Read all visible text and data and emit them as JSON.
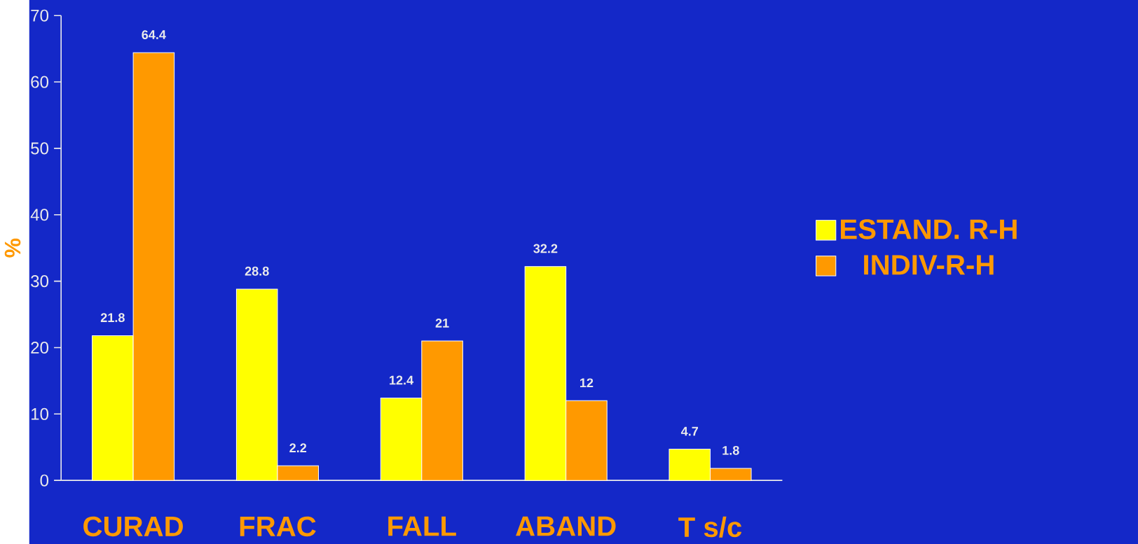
{
  "chart_data": {
    "type": "bar",
    "ylabel": "%",
    "categories": [
      "CURAD",
      "FRAC",
      "FALL",
      "ABAND",
      "T s/c"
    ],
    "series": [
      {
        "name": "ESTAND. R-H",
        "color": "#ffff00",
        "values": [
          21.8,
          28.8,
          12.4,
          32.2,
          4.7
        ]
      },
      {
        "name": "INDIV-R-H",
        "color": "#ff9900",
        "values": [
          64.4,
          2.2,
          21,
          12,
          1.8
        ]
      }
    ],
    "ylim": [
      0,
      70
    ],
    "yticks": [
      0,
      10,
      20,
      30,
      40,
      50,
      60,
      70
    ],
    "data_labels": true,
    "legend": "right",
    "grid": false
  }
}
